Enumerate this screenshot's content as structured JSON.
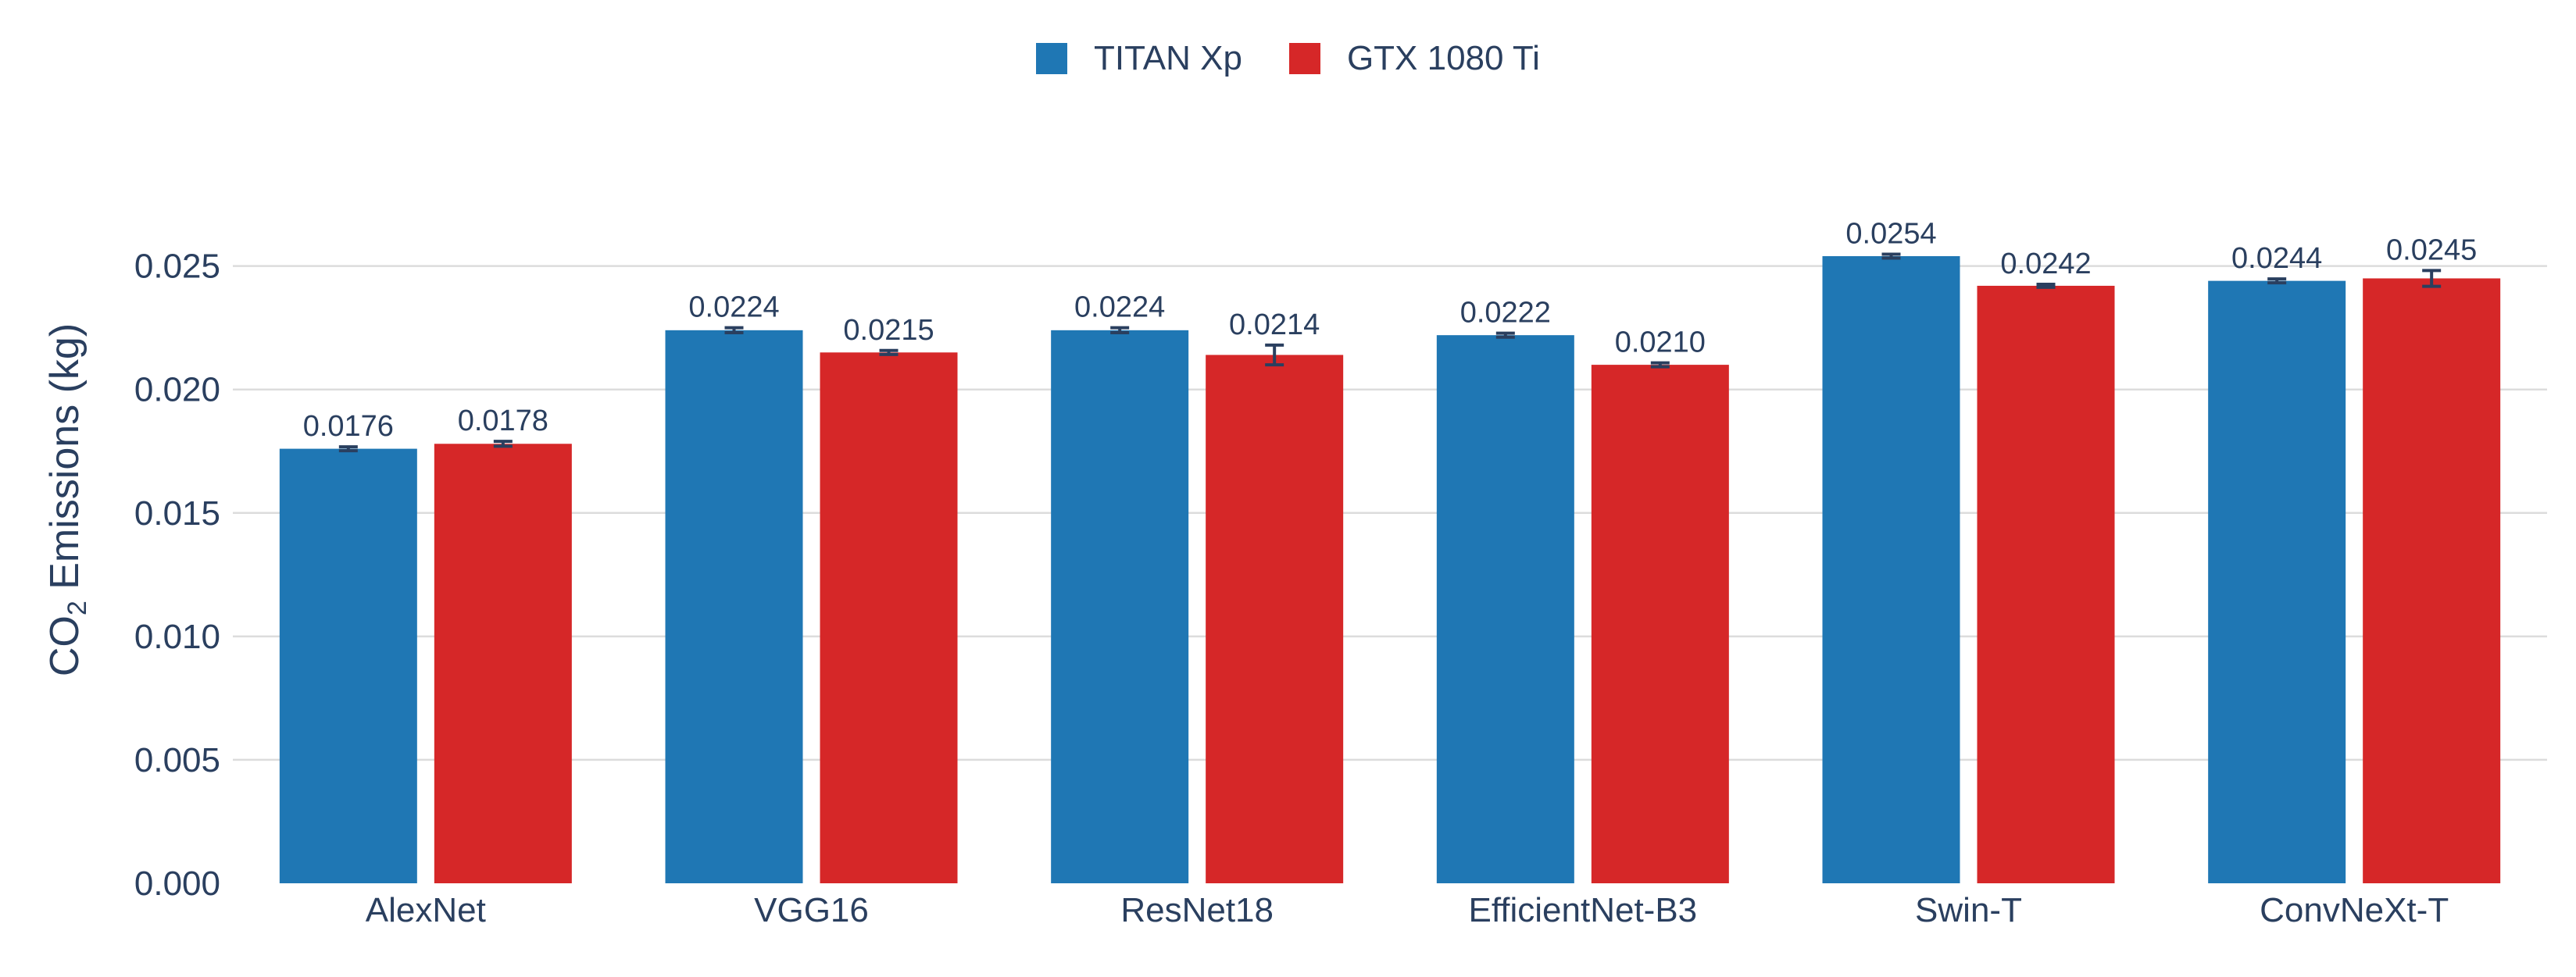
{
  "chart_data": {
    "type": "bar",
    "categories": [
      "AlexNet",
      "VGG16",
      "ResNet18",
      "EfficientNet-B3",
      "Swin-T",
      "ConvNeXt-T"
    ],
    "series": [
      {
        "name": "TITAN Xp",
        "color": "#1f77b4",
        "values": [
          0.0176,
          0.0224,
          0.0224,
          0.0222,
          0.0254,
          0.0244
        ],
        "labels": [
          "0.0176",
          "0.0224",
          "0.0224",
          "0.0222",
          "0.0254",
          "0.0244"
        ],
        "errors": [
          8e-05,
          0.0001,
          0.0001,
          8e-05,
          8e-05,
          8e-05
        ]
      },
      {
        "name": "GTX 1080 Ti",
        "color": "#d62728",
        "values": [
          0.0178,
          0.0215,
          0.0214,
          0.021,
          0.0242,
          0.0245
        ],
        "labels": [
          "0.0178",
          "0.0215",
          "0.0214",
          "0.0210",
          "0.0242",
          "0.0245"
        ],
        "errors": [
          0.0001,
          8e-05,
          0.0004,
          8e-05,
          6e-05,
          0.00032
        ]
      }
    ],
    "title": "",
    "xlabel": "",
    "ylabel_main": "CO",
    "ylabel_sub": "2",
    "ylabel_rest": " Emissions (kg)",
    "ylim": [
      0,
      0.0285
    ],
    "yticks": [
      0,
      0.005,
      0.01,
      0.015,
      0.02,
      0.025
    ],
    "ytick_labels": [
      "0.000",
      "0.005",
      "0.010",
      "0.015",
      "0.020",
      "0.025"
    ],
    "grid": true,
    "legend_position": "top-center"
  }
}
